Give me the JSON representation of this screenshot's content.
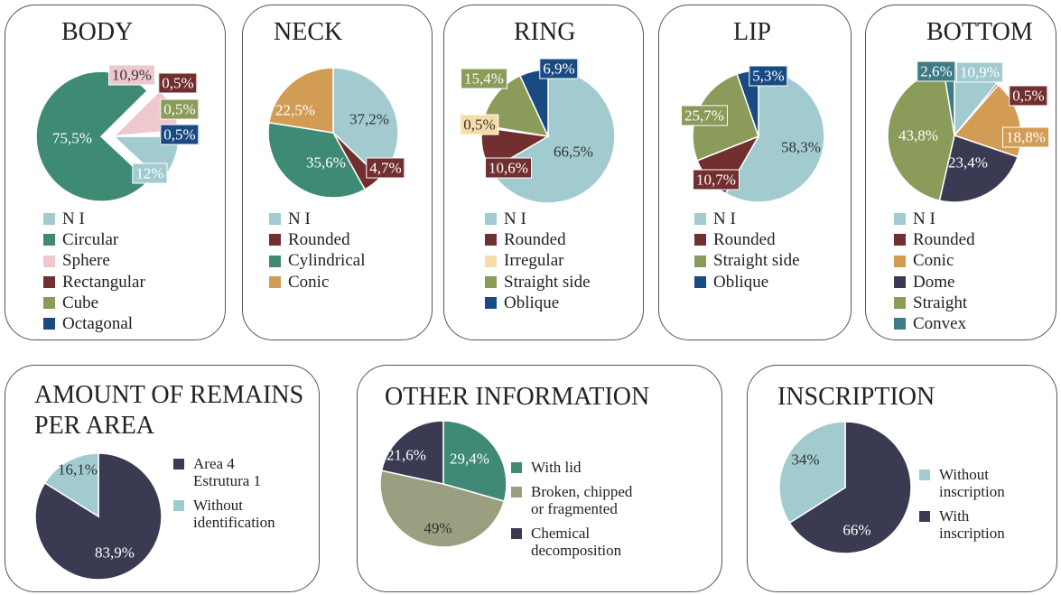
{
  "colors": {
    "ni": "#a2cbd0",
    "circular": "#3f8a74",
    "sphere": "#efc8ce",
    "rectangular": "#722f2f",
    "cube": "#8a9b5a",
    "octagonal": "#1a4a82",
    "conic": "#d39c55",
    "irregular": "#f7dcaa",
    "dome": "#3a3a52",
    "convex": "#3f7b84",
    "broken": "#999f80"
  },
  "chart_data": [
    {
      "id": "body",
      "type": "pie",
      "title": "BODY",
      "slices": [
        {
          "label": "N I",
          "value": 12,
          "display": "12%",
          "color": "#a2cbd0"
        },
        {
          "label": "Circular",
          "value": 75.5,
          "display": "75,5%",
          "color": "#3f8a74"
        },
        {
          "label": "Sphere",
          "value": 10.9,
          "display": "10,9%",
          "color": "#efc8ce"
        },
        {
          "label": "Rectangular",
          "value": 0.5,
          "display": "0,5%",
          "color": "#722f2f"
        },
        {
          "label": "Cube",
          "value": 0.5,
          "display": "0,5%",
          "color": "#8a9b5a"
        },
        {
          "label": "Octagonal",
          "value": 0.5,
          "display": "0,5%",
          "color": "#1a4a82"
        }
      ]
    },
    {
      "id": "neck",
      "type": "pie",
      "title": "NECK",
      "slices": [
        {
          "label": "N I",
          "value": 37.2,
          "display": "37,2%",
          "color": "#a2cbd0"
        },
        {
          "label": "Rounded",
          "value": 4.7,
          "display": "4,7%",
          "color": "#722f2f"
        },
        {
          "label": "Cylindrical",
          "value": 35.6,
          "display": "35,6%",
          "color": "#3f8a74"
        },
        {
          "label": "Conic",
          "value": 22.5,
          "display": "22,5%",
          "color": "#d39c55"
        }
      ]
    },
    {
      "id": "ring",
      "type": "pie",
      "title": "RING",
      "slices": [
        {
          "label": "N I",
          "value": 66.5,
          "display": "66,5%",
          "color": "#a2cbd0"
        },
        {
          "label": "Rounded",
          "value": 10.6,
          "display": "10,6%",
          "color": "#722f2f"
        },
        {
          "label": "Irregular",
          "value": 0.5,
          "display": "0,5%",
          "color": "#f7dcaa"
        },
        {
          "label": "Straight side",
          "value": 15.4,
          "display": "15,4%",
          "color": "#8a9b5a"
        },
        {
          "label": "Oblique",
          "value": 6.9,
          "display": "6,9%",
          "color": "#1a4a82"
        }
      ]
    },
    {
      "id": "lip",
      "type": "pie",
      "title": "LIP",
      "slices": [
        {
          "label": "N I",
          "value": 58.3,
          "display": "58,3%",
          "color": "#a2cbd0"
        },
        {
          "label": "Rounded",
          "value": 10.7,
          "display": "10,7%",
          "color": "#722f2f"
        },
        {
          "label": "Straight side",
          "value": 25.7,
          "display": "25,7%",
          "color": "#8a9b5a"
        },
        {
          "label": "Oblique",
          "value": 5.3,
          "display": "5,3%",
          "color": "#1a4a82"
        }
      ]
    },
    {
      "id": "bottom",
      "type": "pie",
      "title": "BOTTOM",
      "slices": [
        {
          "label": "N I",
          "value": 10.9,
          "display": "10,9%",
          "color": "#a2cbd0"
        },
        {
          "label": "Rounded",
          "value": 0.5,
          "display": "0,5%",
          "color": "#722f2f"
        },
        {
          "label": "Conic",
          "value": 18.8,
          "display": "18,8%",
          "color": "#d39c55"
        },
        {
          "label": "Dome",
          "value": 23.4,
          "display": "23,4%",
          "color": "#3a3a52"
        },
        {
          "label": "Straight",
          "value": 43.8,
          "display": "43,8%",
          "color": "#8a9b5a"
        },
        {
          "label": "Convex",
          "value": 2.6,
          "display": "2,6%",
          "color": "#3f7b84"
        }
      ]
    },
    {
      "id": "remains",
      "type": "pie",
      "title": "AMOUNT OF REMAINS PER AREA",
      "slices": [
        {
          "label": "Area 4 Estrutura 1",
          "value": 83.9,
          "display": "83,9%",
          "color": "#3a3a52"
        },
        {
          "label": "Without identification",
          "value": 16.1,
          "display": "16,1%",
          "color": "#a2cbd0"
        }
      ]
    },
    {
      "id": "other",
      "type": "pie",
      "title": "OTHER INFORMATION",
      "slices": [
        {
          "label": "With lid",
          "value": 29.4,
          "display": "29,4%",
          "color": "#3f8a74"
        },
        {
          "label": "Broken, chipped or fragmented",
          "value": 49,
          "display": "49%",
          "color": "#999f80"
        },
        {
          "label": "Chemical decomposition",
          "value": 21.6,
          "display": "21,6%",
          "color": "#3a3a52"
        }
      ]
    },
    {
      "id": "inscription",
      "type": "pie",
      "title": "INSCRIPTION",
      "slices": [
        {
          "label": "With inscription",
          "value": 66,
          "display": "66%",
          "color": "#3a3a52"
        },
        {
          "label": "Without inscription",
          "value": 34,
          "display": "34%",
          "color": "#a2cbd0"
        }
      ]
    }
  ],
  "legends": {
    "body": [
      "N I",
      "Circular",
      "Sphere",
      "Rectangular",
      "Cube",
      "Octagonal"
    ],
    "neck": [
      "N I",
      "Rounded",
      "Cylindrical",
      "Conic"
    ],
    "ring": [
      "N I",
      "Rounded",
      "Irregular",
      "Straight side",
      "Oblique"
    ],
    "lip": [
      "N I",
      "Rounded",
      "Straight side",
      "Oblique"
    ],
    "bottom": [
      "N I",
      "Rounded",
      "Conic",
      "Dome",
      "Straight",
      "Convex"
    ],
    "remains": [
      "Area 4\nEstrutura 1",
      "Without\nidentification"
    ],
    "other": [
      "With lid",
      "Broken, chipped\n or fragmented",
      "Chemical\ndecomposition"
    ],
    "inscription": [
      "Without\ninscription",
      "With\ninscription"
    ]
  }
}
